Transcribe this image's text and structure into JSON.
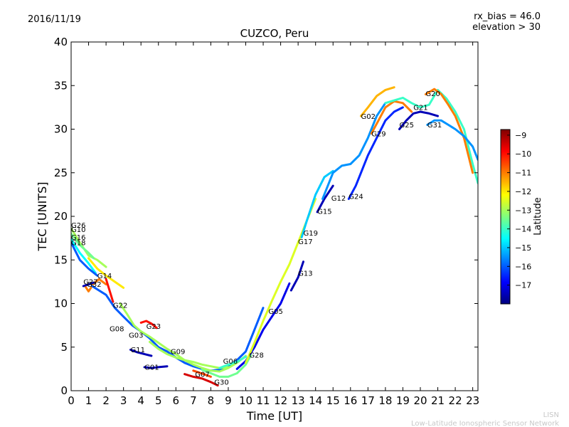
{
  "header": {
    "date": "2016/11/19",
    "rx_bias": "rx_bias = 46.0",
    "elevation": "elevation > 30"
  },
  "footer": {
    "line1": "LISN",
    "line2": "Low-Latitude Ionospheric Sensor Network"
  },
  "colors": {
    "footer_text": "#c8c8c8",
    "colormap": [
      "#00007f",
      "#0000ff",
      "#007fff",
      "#00ffff",
      "#7fff7f",
      "#ffff00",
      "#ff7f00",
      "#ff0000",
      "#7f0000"
    ]
  },
  "chart_data": {
    "type": "line",
    "title": "CUZCO, Peru",
    "xlabel": "Time [UT]",
    "ylabel": "TEC [UNITS]",
    "xlim": [
      0,
      23.3
    ],
    "ylim": [
      0,
      40
    ],
    "xticks": [
      0,
      1,
      2,
      3,
      4,
      5,
      6,
      7,
      8,
      9,
      10,
      11,
      12,
      13,
      14,
      15,
      16,
      17,
      18,
      19,
      20,
      21,
      22,
      23
    ],
    "yticks": [
      0,
      5,
      10,
      15,
      20,
      25,
      30,
      35,
      40
    ],
    "colorbar": {
      "label": "Latitude",
      "range": [
        -18,
        -8.7
      ],
      "ticks": [
        -9,
        -10,
        -11,
        -12,
        -13,
        -14,
        -15,
        -16,
        -17
      ]
    },
    "series": [
      {
        "name": "G26",
        "label_at": [
          0.0,
          18.7
        ],
        "lat": -13.0,
        "points": [
          [
            0.0,
            18.6
          ],
          [
            0.5,
            17.0
          ],
          [
            1.0,
            15.5
          ],
          [
            1.5,
            15.0
          ],
          [
            2.0,
            14.2
          ]
        ]
      },
      {
        "name": "G10",
        "label_at": [
          0.0,
          18.2
        ],
        "lat": -13.5,
        "points": [
          [
            0.0,
            18.0
          ],
          [
            0.5,
            16.7
          ],
          [
            1.0,
            15.8
          ],
          [
            1.3,
            15.2
          ]
        ]
      },
      {
        "name": "G16",
        "label_at": [
          0.0,
          17.3
        ],
        "lat": -14.5,
        "points": [
          [
            0.0,
            17.4
          ],
          [
            0.5,
            15.8
          ],
          [
            1.0,
            14.6
          ],
          [
            1.4,
            13.5
          ]
        ]
      },
      {
        "name": "G18",
        "label_at": [
          0.0,
          16.7
        ],
        "lat": -16.0,
        "points": [
          [
            0.0,
            17.0
          ],
          [
            0.5,
            15.0
          ],
          [
            1.0,
            14.0
          ],
          [
            1.5,
            13.2
          ]
        ]
      },
      {
        "name": "G14",
        "label_at": [
          1.5,
          12.9
        ],
        "lat": -12.0,
        "points": [
          [
            1.0,
            15.2
          ],
          [
            1.5,
            14.0
          ],
          [
            2.0,
            13.2
          ],
          [
            2.5,
            12.5
          ],
          [
            3.0,
            11.8
          ]
        ]
      },
      {
        "name": "G27",
        "label_at": [
          0.7,
          12.2
        ],
        "lat": -11.0,
        "points": [
          [
            0.8,
            12.0
          ],
          [
            1.0,
            11.4
          ],
          [
            1.3,
            12.3
          ],
          [
            1.6,
            12.8
          ],
          [
            2.0,
            12.2
          ]
        ]
      },
      {
        "name": "G32",
        "label_at": [
          0.9,
          11.9
        ],
        "lat": -17.5,
        "points": [
          [
            0.7,
            12.0
          ],
          [
            1.0,
            12.2
          ],
          [
            1.3,
            12.4
          ]
        ]
      },
      {
        "name": "G22",
        "label_at": [
          2.4,
          9.5
        ],
        "lat": -10.0,
        "points": [
          [
            2.0,
            12.8
          ],
          [
            2.2,
            11.5
          ],
          [
            2.4,
            10.2
          ]
        ]
      },
      {
        "name": "G08",
        "label_at": [
          2.2,
          6.8
        ],
        "lat": -16.0,
        "points": [
          [
            1.2,
            12.0
          ],
          [
            2.0,
            11.0
          ],
          [
            2.5,
            9.5
          ],
          [
            3.0,
            8.5
          ],
          [
            3.5,
            7.5
          ],
          [
            4.0,
            6.8
          ],
          [
            4.5,
            6.0
          ],
          [
            5.0,
            5.0
          ],
          [
            5.5,
            4.5
          ],
          [
            6.0,
            3.8
          ],
          [
            6.5,
            3.2
          ],
          [
            7.0,
            2.8
          ],
          [
            7.5,
            2.5
          ],
          [
            8.0,
            2.3
          ],
          [
            8.5,
            2.4
          ],
          [
            9.0,
            2.8
          ],
          [
            9.5,
            3.5
          ],
          [
            10.0,
            4.5
          ],
          [
            10.5,
            7.0
          ],
          [
            11.0,
            9.5
          ]
        ]
      },
      {
        "name": "G23",
        "label_at": [
          4.3,
          7.1
        ],
        "lat": -10.0,
        "points": [
          [
            4.0,
            7.8
          ],
          [
            4.3,
            8.0
          ],
          [
            4.6,
            7.7
          ],
          [
            4.9,
            7.2
          ]
        ]
      },
      {
        "name": "G03",
        "label_at": [
          3.3,
          6.1
        ],
        "lat": -13.0,
        "points": [
          [
            2.8,
            10.0
          ],
          [
            3.2,
            8.8
          ],
          [
            3.6,
            7.5
          ],
          [
            4.0,
            6.8
          ],
          [
            4.5,
            6.2
          ],
          [
            5.0,
            5.5
          ],
          [
            5.5,
            4.8
          ],
          [
            6.0,
            4.2
          ],
          [
            6.5,
            3.5
          ],
          [
            7.0,
            3.0
          ],
          [
            7.5,
            2.6
          ],
          [
            8.0,
            2.3
          ],
          [
            8.5,
            2.2
          ],
          [
            9.0,
            2.6
          ],
          [
            9.5,
            3.2
          ],
          [
            10.0,
            4.0
          ]
        ]
      },
      {
        "name": "G11",
        "label_at": [
          3.4,
          4.4
        ],
        "lat": -17.5,
        "points": [
          [
            3.4,
            4.7
          ],
          [
            3.8,
            4.4
          ],
          [
            4.2,
            4.2
          ],
          [
            4.6,
            4.0
          ]
        ]
      },
      {
        "name": "G09",
        "label_at": [
          5.7,
          4.2
        ],
        "lat": -13.0,
        "points": [
          [
            4.5,
            5.6
          ],
          [
            5.0,
            4.8
          ],
          [
            5.5,
            4.2
          ],
          [
            6.0,
            3.8
          ],
          [
            6.5,
            3.5
          ],
          [
            7.0,
            3.3
          ],
          [
            7.5,
            3.0
          ],
          [
            8.0,
            2.8
          ],
          [
            8.5,
            2.6
          ],
          [
            9.0,
            2.7
          ]
        ]
      },
      {
        "name": "G01",
        "label_at": [
          4.2,
          2.4
        ],
        "lat": -17.5,
        "points": [
          [
            4.2,
            2.7
          ],
          [
            4.6,
            2.6
          ],
          [
            5.0,
            2.7
          ],
          [
            5.5,
            2.8
          ]
        ]
      },
      {
        "name": "G07",
        "label_at": [
          7.1,
          1.6
        ],
        "lat": -10.5,
        "points": [
          [
            7.0,
            2.3
          ],
          [
            7.3,
            2.1
          ],
          [
            7.6,
            1.9
          ],
          [
            8.0,
            1.6
          ]
        ]
      },
      {
        "name": "G30",
        "label_at": [
          8.2,
          0.7
        ],
        "lat": -9.5,
        "points": [
          [
            6.5,
            1.9
          ],
          [
            7.0,
            1.6
          ],
          [
            7.5,
            1.4
          ],
          [
            8.0,
            1.0
          ],
          [
            8.4,
            0.6
          ]
        ]
      },
      {
        "name": "G06",
        "label_at": [
          8.7,
          3.1
        ],
        "lat": -14.0,
        "points": [
          [
            8.5,
            2.6
          ],
          [
            9.0,
            3.0
          ],
          [
            9.5,
            3.3
          ],
          [
            10.0,
            3.9
          ]
        ]
      },
      {
        "name": "G28",
        "label_at": [
          10.2,
          3.8
        ],
        "lat": -13.5,
        "points": [
          [
            7.5,
            2.4
          ],
          [
            8.0,
            2.0
          ],
          [
            8.5,
            1.6
          ],
          [
            9.0,
            1.6
          ],
          [
            9.5,
            2.0
          ],
          [
            10.0,
            3.0
          ],
          [
            10.3,
            4.1
          ]
        ]
      },
      {
        "name": "G05",
        "label_at": [
          11.3,
          8.8
        ],
        "lat": -17.0,
        "points": [
          [
            9.5,
            2.5
          ],
          [
            10.0,
            3.4
          ],
          [
            10.5,
            5.0
          ],
          [
            11.0,
            7.0
          ],
          [
            11.5,
            8.5
          ],
          [
            12.0,
            10.0
          ],
          [
            12.5,
            12.3
          ]
        ]
      },
      {
        "name": "G13",
        "label_at": [
          13.0,
          13.2
        ],
        "lat": -17.5,
        "points": [
          [
            12.6,
            11.5
          ],
          [
            13.0,
            13.0
          ],
          [
            13.3,
            14.8
          ]
        ]
      },
      {
        "name": "G17",
        "label_at": [
          13.0,
          16.8
        ],
        "lat": -12.5,
        "points": [
          [
            10.0,
            3.2
          ],
          [
            10.5,
            5.5
          ],
          [
            11.0,
            8.0
          ],
          [
            11.5,
            10.3
          ],
          [
            12.0,
            12.5
          ],
          [
            12.5,
            14.5
          ],
          [
            13.0,
            17.0
          ],
          [
            13.5,
            19.5
          ],
          [
            14.0,
            22.0
          ]
        ]
      },
      {
        "name": "G19",
        "label_at": [
          13.3,
          17.8
        ],
        "lat": -15.0,
        "points": [
          [
            13.2,
            17.6
          ],
          [
            13.5,
            19.5
          ],
          [
            14.0,
            22.5
          ],
          [
            14.5,
            24.5
          ],
          [
            15.0,
            25.2
          ]
        ]
      },
      {
        "name": "G15",
        "label_at": [
          14.1,
          20.3
        ],
        "lat": -17.5,
        "points": [
          [
            14.1,
            20.5
          ],
          [
            14.5,
            22.0
          ],
          [
            15.0,
            23.5
          ]
        ]
      },
      {
        "name": "G12",
        "label_at": [
          14.9,
          21.8
        ],
        "lat": -15.5,
        "points": [
          [
            14.4,
            22.0
          ],
          [
            15.0,
            25.0
          ],
          [
            15.5,
            25.8
          ],
          [
            16.0,
            26.0
          ],
          [
            16.5,
            27.0
          ],
          [
            17.0,
            29.0
          ],
          [
            17.5,
            31.5
          ],
          [
            18.0,
            33.0
          ]
        ]
      },
      {
        "name": "G24",
        "label_at": [
          15.9,
          22.0
        ],
        "lat": -16.5,
        "points": [
          [
            15.9,
            22.0
          ],
          [
            16.3,
            23.5
          ],
          [
            16.7,
            25.5
          ],
          [
            17.0,
            27.0
          ],
          [
            17.5,
            29.0
          ],
          [
            18.0,
            31.0
          ],
          [
            18.5,
            32.0
          ],
          [
            19.0,
            32.5
          ]
        ]
      },
      {
        "name": "G02",
        "label_at": [
          16.6,
          31.2
        ],
        "lat": -11.5,
        "points": [
          [
            16.6,
            31.5
          ],
          [
            17.0,
            32.5
          ],
          [
            17.5,
            33.8
          ],
          [
            18.0,
            34.5
          ],
          [
            18.5,
            34.8
          ]
        ]
      },
      {
        "name": "G29",
        "label_at": [
          17.2,
          29.2
        ],
        "lat": -11.0,
        "points": [
          [
            17.2,
            29.5
          ],
          [
            17.6,
            31.0
          ],
          [
            18.0,
            32.5
          ],
          [
            18.5,
            33.2
          ],
          [
            19.0,
            33.0
          ],
          [
            19.5,
            32.0
          ]
        ]
      },
      {
        "name": "G25",
        "label_at": [
          18.8,
          30.2
        ],
        "lat": -17.5,
        "points": [
          [
            18.8,
            30.0
          ],
          [
            19.2,
            31.0
          ],
          [
            19.6,
            31.8
          ],
          [
            20.0,
            32.0
          ],
          [
            20.5,
            31.8
          ],
          [
            21.0,
            31.5
          ]
        ]
      },
      {
        "name": "G21",
        "label_at": [
          19.6,
          32.2
        ],
        "lat": -14.0,
        "points": [
          [
            18.0,
            33.0
          ],
          [
            18.5,
            33.3
          ],
          [
            19.0,
            33.6
          ],
          [
            19.5,
            33.0
          ],
          [
            20.0,
            32.5
          ],
          [
            20.5,
            32.8
          ],
          [
            21.0,
            34.5
          ],
          [
            21.5,
            33.5
          ],
          [
            22.0,
            32.0
          ],
          [
            22.5,
            30.0
          ],
          [
            23.0,
            26.0
          ],
          [
            23.3,
            23.8
          ]
        ]
      },
      {
        "name": "G20",
        "label_at": [
          20.3,
          33.8
        ],
        "lat": -11.0,
        "points": [
          [
            20.3,
            34.0
          ],
          [
            20.8,
            34.6
          ],
          [
            21.2,
            34.0
          ],
          [
            21.6,
            32.8
          ],
          [
            22.0,
            31.5
          ],
          [
            22.5,
            29.0
          ],
          [
            23.0,
            25.0
          ]
        ]
      },
      {
        "name": "G31",
        "label_at": [
          20.4,
          30.2
        ],
        "lat": -15.5,
        "points": [
          [
            20.4,
            30.5
          ],
          [
            20.8,
            31.0
          ],
          [
            21.2,
            31.0
          ],
          [
            21.6,
            30.5
          ],
          [
            22.0,
            30.0
          ],
          [
            22.5,
            29.2
          ],
          [
            23.0,
            28.0
          ],
          [
            23.3,
            26.5
          ]
        ]
      }
    ]
  }
}
